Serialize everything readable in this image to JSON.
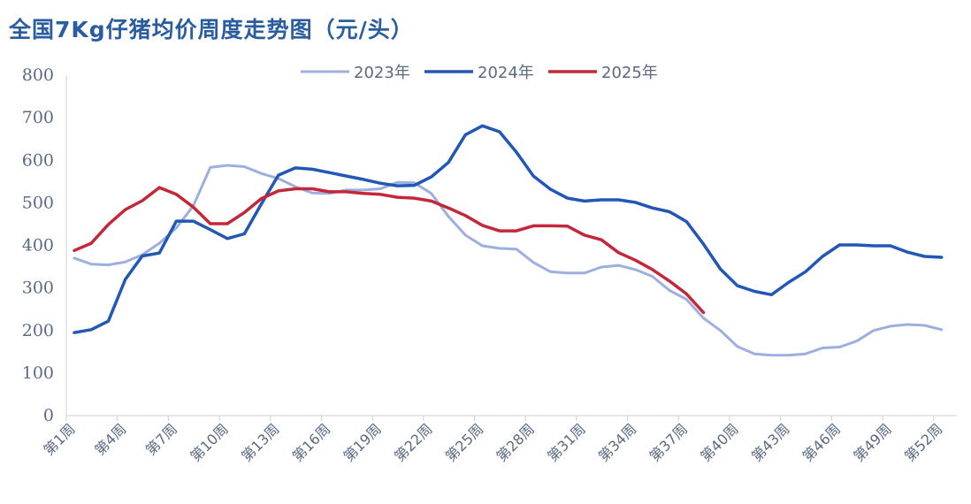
{
  "chart_data": {
    "type": "line",
    "title": "全国7Kg仔猪均价周度走势图（元/头）",
    "xlabel": "",
    "ylabel": "",
    "ylim": [
      0,
      800
    ],
    "yticks": [
      0,
      100,
      200,
      300,
      400,
      500,
      600,
      700,
      800
    ],
    "x_tick_labels": [
      "第1周",
      "第4周",
      "第7周",
      "第10周",
      "第13周",
      "第16周",
      "第19周",
      "第22周",
      "第25周",
      "第28周",
      "第31周",
      "第34周",
      "第37周",
      "第40周",
      "第43周",
      "第46周",
      "第49周",
      "第52周"
    ],
    "x_tick_weeks": [
      1,
      4,
      7,
      10,
      13,
      16,
      19,
      22,
      25,
      28,
      31,
      34,
      37,
      40,
      43,
      46,
      49,
      52
    ],
    "legend_position": "top-center",
    "series": [
      {
        "name": "2023年",
        "color": "#9dafdf",
        "weeks": [
          1,
          2,
          3,
          4,
          5,
          6,
          7,
          8,
          9,
          10,
          11,
          12,
          13,
          14,
          15,
          16,
          17,
          18,
          19,
          20,
          21,
          22,
          23,
          24,
          25,
          26,
          27,
          28,
          29,
          30,
          31,
          32,
          33,
          34,
          35,
          36,
          37,
          38,
          39,
          40,
          41,
          42,
          43,
          44,
          45,
          46,
          47,
          48,
          49,
          50,
          51,
          52
        ],
        "values": [
          370,
          356,
          354,
          361,
          378,
          405,
          441,
          493,
          583,
          588,
          585,
          569,
          557,
          538,
          523,
          522,
          530,
          530,
          533,
          548,
          547,
          522,
          468,
          424,
          399,
          393,
          391,
          360,
          338,
          335,
          335,
          349,
          353,
          343,
          327,
          294,
          273,
          229,
          200,
          162,
          145,
          142,
          142,
          145,
          159,
          161,
          175,
          200,
          210,
          214,
          212,
          202
        ]
      },
      {
        "name": "2024年",
        "color": "#2257b5",
        "weeks": [
          1,
          2,
          3,
          4,
          5,
          6,
          7,
          8,
          9,
          10,
          11,
          12,
          13,
          14,
          15,
          16,
          17,
          18,
          19,
          20,
          21,
          22,
          23,
          24,
          25,
          26,
          27,
          28,
          29,
          30,
          31,
          32,
          33,
          34,
          35,
          36,
          37,
          38,
          39,
          40,
          41,
          42,
          43,
          44,
          45,
          46,
          47,
          48,
          49,
          50,
          51,
          52
        ],
        "values": [
          195,
          202,
          222,
          320,
          375,
          382,
          457,
          457,
          437,
          416,
          427,
          497,
          565,
          582,
          579,
          571,
          563,
          555,
          546,
          540,
          541,
          561,
          595,
          660,
          681,
          667,
          619,
          563,
          532,
          511,
          504,
          507,
          507,
          501,
          488,
          479,
          456,
          403,
          344,
          305,
          292,
          284,
          313,
          338,
          374,
          401,
          401,
          399,
          399,
          384,
          374,
          372
        ]
      },
      {
        "name": "2025年",
        "color": "#c3283a",
        "weeks": [
          1,
          2,
          3,
          4,
          5,
          6,
          7,
          8,
          9,
          10,
          11,
          12,
          13,
          14,
          15,
          16,
          17,
          18,
          19,
          20,
          21,
          22,
          23,
          24,
          25,
          26,
          27,
          28,
          29,
          30,
          31,
          32,
          33,
          34,
          35,
          36,
          37,
          38
        ],
        "values": [
          388,
          405,
          449,
          484,
          505,
          536,
          520,
          490,
          451,
          451,
          477,
          510,
          528,
          533,
          533,
          526,
          526,
          522,
          520,
          513,
          511,
          504,
          488,
          470,
          447,
          434,
          434,
          446,
          446,
          445,
          424,
          413,
          383,
          365,
          343,
          316,
          286,
          242
        ]
      }
    ]
  }
}
